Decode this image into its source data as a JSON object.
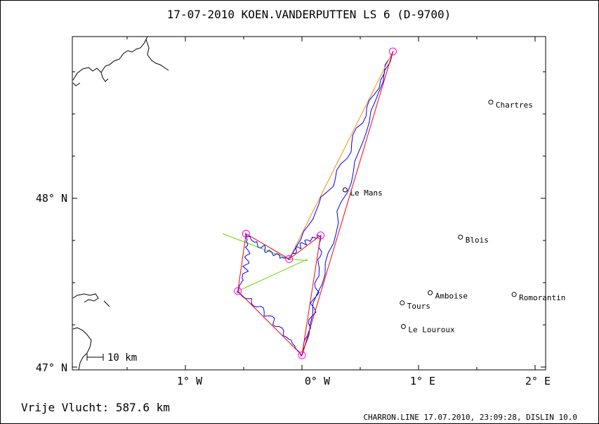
{
  "header": {
    "title": "17-07-2010    KOEN.VANDERPUTTEN    LS 6 (D-9700)"
  },
  "axes": {
    "x_ticks": [
      "1° W",
      "0° W",
      "1° E",
      "2° E"
    ],
    "y_ticks": [
      "48° N",
      "47° N"
    ]
  },
  "scale_bar": {
    "label": "10 km"
  },
  "cities": [
    {
      "name": "Chartres",
      "lon": 1.62,
      "lat": 48.57
    },
    {
      "name": "Le Mans",
      "lon": 0.37,
      "lat": 48.05
    },
    {
      "name": "Blois",
      "lon": 1.36,
      "lat": 47.77
    },
    {
      "name": "Amboise",
      "lon": 1.1,
      "lat": 47.44
    },
    {
      "name": "Romorantin",
      "lon": 1.82,
      "lat": 47.43
    },
    {
      "name": "Tours",
      "lon": 0.86,
      "lat": 47.38
    },
    {
      "name": "Le Louroux",
      "lon": 0.87,
      "lat": 47.24
    }
  ],
  "turnpoints": [
    {
      "lon": 0.0,
      "lat": 47.07
    },
    {
      "lon": 0.16,
      "lat": 47.78
    },
    {
      "lon": -0.11,
      "lat": 47.64
    },
    {
      "lon": 0.78,
      "lat": 48.87
    },
    {
      "lon": 0.0,
      "lat": 47.07
    },
    {
      "lon": -0.55,
      "lat": 47.45
    },
    {
      "lon": -0.48,
      "lat": 47.79
    },
    {
      "lon": -0.11,
      "lat": 47.64
    }
  ],
  "colors": {
    "track": "#0000ff",
    "route": "#ff0000",
    "leg": "#ff8800",
    "sector": "#66dd00",
    "turnpoint": "#ff00ff"
  },
  "footer": {
    "distance_label": "Vrije Vlucht:  587.6 km",
    "credit": "CHARRON.LINE 17.07.2010, 23:09:28, DISLIN 10.0"
  }
}
